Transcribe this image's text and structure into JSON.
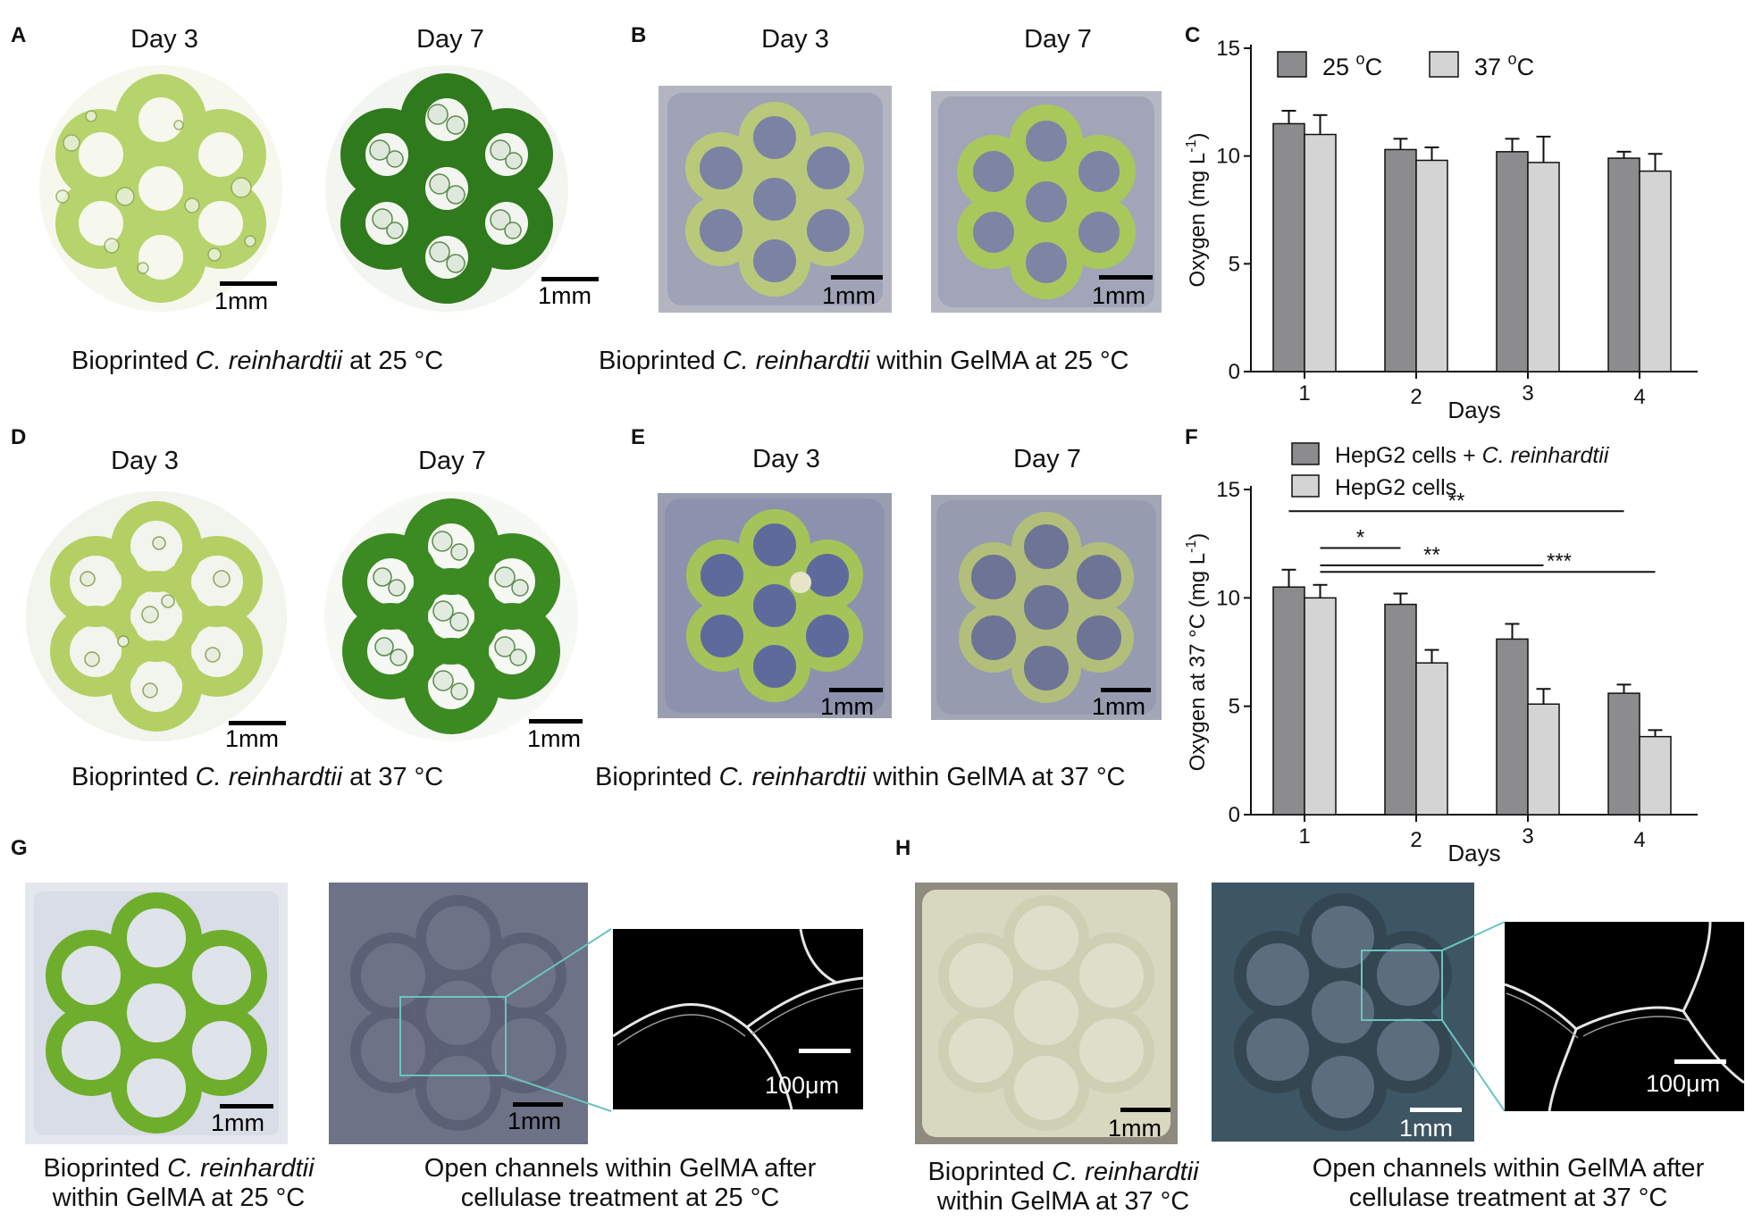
{
  "panels": {
    "A": {
      "label": "A",
      "day_left": "Day 3",
      "day_right": "Day 7",
      "scale_left": "1mm",
      "scale_right": "1mm",
      "caption_pre": "Bioprinted ",
      "caption_em": "C. reinhardtii",
      "caption_post": " at 25 °C"
    },
    "B": {
      "label": "B",
      "day_left": "Day 3",
      "day_right": "Day 7",
      "scale_left": "1mm",
      "scale_right": "1mm",
      "caption_pre": "Bioprinted ",
      "caption_em": "C. reinhardtii",
      "caption_post": " within GelMA at 25 °C"
    },
    "C": {
      "label": "C"
    },
    "D": {
      "label": "D",
      "day_left": "Day 3",
      "day_right": "Day 7",
      "scale_left": "1mm",
      "scale_right": "1mm",
      "caption_pre": "Bioprinted ",
      "caption_em": "C. reinhardtii",
      "caption_post": " at 37 °C"
    },
    "E": {
      "label": "E",
      "day_left": "Day 3",
      "day_right": "Day 7",
      "scale_left": "1mm",
      "scale_right": "1mm",
      "caption_pre": "Bioprinted ",
      "caption_em": "C. reinhardtii",
      "caption_post": " within GelMA at 37 °C"
    },
    "F": {
      "label": "F"
    },
    "G": {
      "label": "G",
      "scale_1": "1mm",
      "scale_2": "1mm",
      "scale_3": "100μm",
      "cap1_line1_pre": "Bioprinted ",
      "cap1_line1_em": "C. reinhardtii",
      "cap1_line2": "within GelMA at 25 °C",
      "cap2_line1": "Open channels within GelMA after",
      "cap2_line2": "cellulase treatment at 25 °C"
    },
    "H": {
      "label": "H",
      "scale_1": "1mm",
      "scale_2": "1mm",
      "scale_3": "100μm",
      "cap1_line1_pre": "Bioprinted ",
      "cap1_line1_em": "C. reinhardtii",
      "cap1_line2": "within GelMA at 37 °C",
      "cap2_line1": "Open channels within GelMA after",
      "cap2_line2": "cellulase treatment at 37 °C"
    }
  },
  "colors": {
    "dark_bar": "#8c8c8f",
    "light_bar": "#d4d4d4",
    "algae_light": "#b6d36a",
    "algae_dark": "#2f7a1c",
    "gel_blue": "#8a8fa8",
    "inset_box": "#6bc4c0"
  },
  "chart_data": [
    {
      "type": "bar",
      "panel": "C",
      "categories": [
        "1",
        "2",
        "3",
        "4"
      ],
      "xlabel": "Days",
      "ylabel": "Oxygen (mg L",
      "ylabel_sup": "-1",
      "ylabel_end": ")",
      "ylim": [
        0,
        15
      ],
      "yticks": [
        0,
        5,
        10,
        15
      ],
      "legend": "top",
      "series": [
        {
          "name": "25 °C",
          "legend_pre": "25 ",
          "legend_sup": "o",
          "legend_post": "C",
          "color": "#8c8c8f",
          "values": [
            11.5,
            10.3,
            10.2,
            9.9
          ],
          "errors": [
            0.6,
            0.5,
            0.6,
            0.3
          ]
        },
        {
          "name": "37 °C",
          "legend_pre": "37 ",
          "legend_sup": "o",
          "legend_post": "C",
          "color": "#d4d4d4",
          "values": [
            11.0,
            9.8,
            9.7,
            9.3
          ],
          "errors": [
            0.9,
            0.6,
            1.2,
            0.8
          ]
        }
      ]
    },
    {
      "type": "bar",
      "panel": "F",
      "categories": [
        "1",
        "2",
        "3",
        "4"
      ],
      "xlabel": "Days",
      "ylabel": "Oxygen at 37 °C (mg L",
      "ylabel_sup": "-1",
      "ylabel_end": ")",
      "ylim": [
        0,
        15
      ],
      "yticks": [
        0,
        5,
        10,
        15
      ],
      "legend": "top",
      "series": [
        {
          "name": "HepG2 cells + C. reinhardtii",
          "legend_pre": "HepG2 cells + ",
          "legend_em": "C. reinhardtii",
          "color": "#8c8c8f",
          "values": [
            10.5,
            9.7,
            8.1,
            5.6
          ],
          "errors": [
            0.8,
            0.5,
            0.7,
            0.4
          ]
        },
        {
          "name": "HepG2 cells",
          "legend_pre": "HepG2 cells",
          "legend_em": "",
          "color": "#d4d4d4",
          "values": [
            10.0,
            7.0,
            5.1,
            3.6
          ],
          "errors": [
            0.6,
            0.6,
            0.7,
            0.3
          ]
        }
      ],
      "significance": [
        {
          "label": "**",
          "from_cat": 0,
          "from_series": 0,
          "to_cat": 3,
          "to_series": 0,
          "y": 14.0
        },
        {
          "label": "*",
          "from_cat": 0,
          "from_series": 1,
          "to_cat": 1,
          "to_series": 0,
          "y": 12.3
        },
        {
          "label": "**",
          "from_cat": 0,
          "from_series": 1,
          "to_cat": 2,
          "to_series": 1,
          "y": 11.5
        },
        {
          "label": "***",
          "from_cat": 0,
          "from_series": 1,
          "to_cat": 3,
          "to_series": 1,
          "y": 11.2
        }
      ]
    }
  ]
}
